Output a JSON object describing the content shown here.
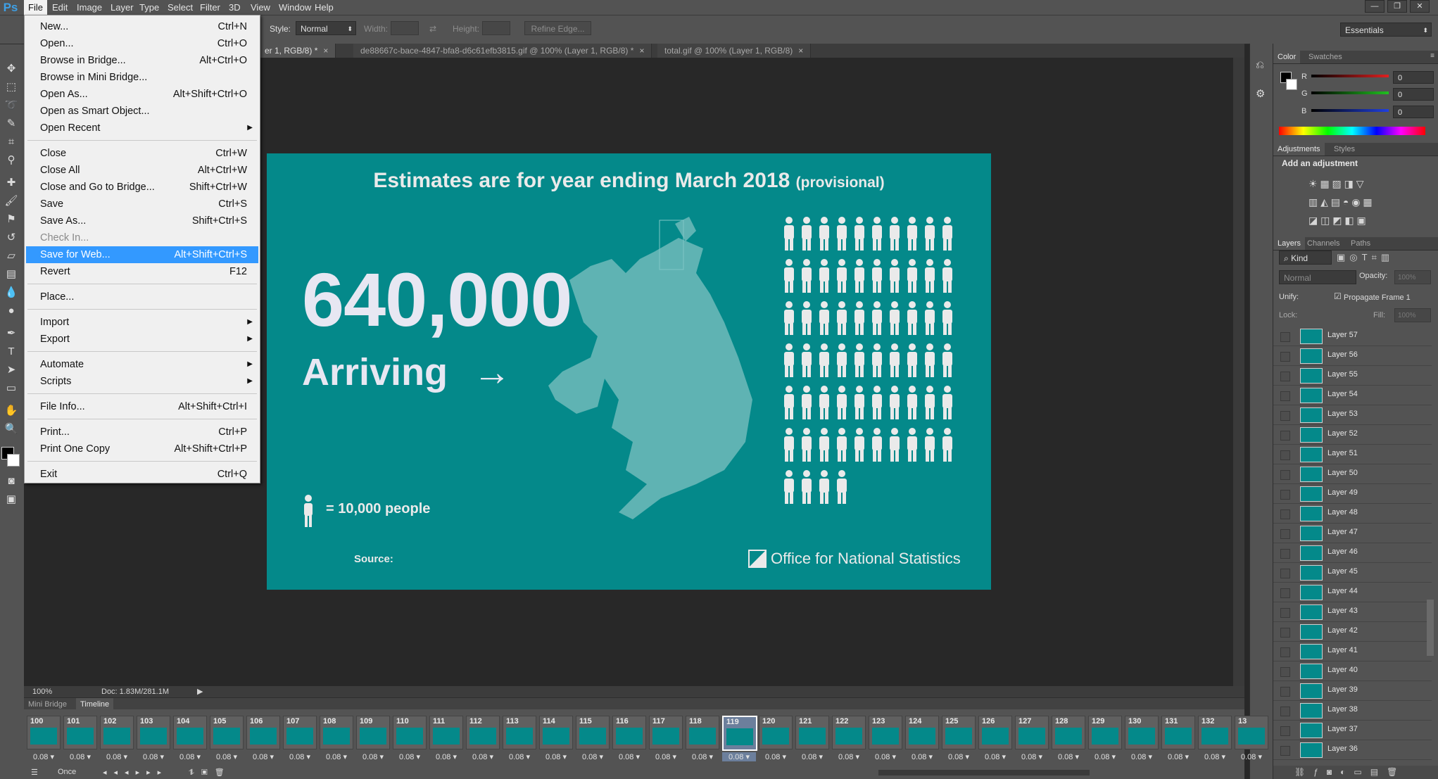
{
  "app": {
    "logo": "Ps"
  },
  "menubar": {
    "items": [
      "File",
      "Edit",
      "Image",
      "Layer",
      "Type",
      "Select",
      "Filter",
      "3D",
      "View",
      "Window",
      "Help"
    ],
    "active": "File",
    "workspace": "Essentials"
  },
  "options_bar": {
    "style_label": "Style:",
    "style_value": "Normal",
    "width_label": "Width:",
    "height_label": "Height:",
    "refine_edge": "Refine Edge..."
  },
  "doc_tabs": [
    {
      "label": "er 1, RGB/8) *"
    },
    {
      "label": "de88667c-bace-4847-bfa8-d6c61efb3815.gif @ 100% (Layer 1, RGB/8) *"
    },
    {
      "label": "total.gif @ 100% (Layer 1, RGB/8)"
    }
  ],
  "file_menu": {
    "groups": [
      [
        {
          "label": "New...",
          "shortcut": "Ctrl+N"
        },
        {
          "label": "Open...",
          "shortcut": "Ctrl+O"
        },
        {
          "label": "Browse in Bridge...",
          "shortcut": "Alt+Ctrl+O"
        },
        {
          "label": "Browse in Mini Bridge...",
          "shortcut": ""
        },
        {
          "label": "Open As...",
          "shortcut": "Alt+Shift+Ctrl+O"
        },
        {
          "label": "Open as Smart Object...",
          "shortcut": ""
        },
        {
          "label": "Open Recent",
          "shortcut": "",
          "submenu": true
        }
      ],
      [
        {
          "label": "Close",
          "shortcut": "Ctrl+W"
        },
        {
          "label": "Close All",
          "shortcut": "Alt+Ctrl+W"
        },
        {
          "label": "Close and Go to Bridge...",
          "shortcut": "Shift+Ctrl+W"
        },
        {
          "label": "Save",
          "shortcut": "Ctrl+S"
        },
        {
          "label": "Save As...",
          "shortcut": "Shift+Ctrl+S"
        },
        {
          "label": "Check In...",
          "shortcut": "",
          "disabled": true
        },
        {
          "label": "Save for Web...",
          "shortcut": "Alt+Shift+Ctrl+S",
          "highlighted": true
        },
        {
          "label": "Revert",
          "shortcut": "F12"
        }
      ],
      [
        {
          "label": "Place...",
          "shortcut": ""
        }
      ],
      [
        {
          "label": "Import",
          "shortcut": "",
          "submenu": true
        },
        {
          "label": "Export",
          "shortcut": "",
          "submenu": true
        }
      ],
      [
        {
          "label": "Automate",
          "shortcut": "",
          "submenu": true
        },
        {
          "label": "Scripts",
          "shortcut": "",
          "submenu": true
        }
      ],
      [
        {
          "label": "File Info...",
          "shortcut": "Alt+Shift+Ctrl+I"
        }
      ],
      [
        {
          "label": "Print...",
          "shortcut": "Ctrl+P"
        },
        {
          "label": "Print One Copy",
          "shortcut": "Alt+Shift+Ctrl+P"
        }
      ],
      [
        {
          "label": "Exit",
          "shortcut": "Ctrl+Q"
        }
      ]
    ]
  },
  "artwork": {
    "title_main": "Estimates are for year ending March 2018",
    "title_suffix": "(provisional)",
    "big_number": "640,000",
    "direction_label": "Arriving",
    "arrow": "→",
    "legend": "= 10,000 people",
    "source_label": "Source:",
    "org_name": "Office for National Statistics",
    "people_icon_count": 64,
    "colors": {
      "background": "#04898a",
      "text": "#e7e7f2",
      "map": "#5fb3b3"
    }
  },
  "color_panel": {
    "tabs": [
      "Color",
      "Swatches"
    ],
    "channels": [
      {
        "label": "R",
        "value": "0",
        "color": "#e02020"
      },
      {
        "label": "G",
        "value": "0",
        "color": "#20c020"
      },
      {
        "label": "B",
        "value": "0",
        "color": "#2040e0"
      }
    ]
  },
  "adjustments_panel": {
    "tabs": [
      "Adjustments",
      "Styles"
    ],
    "heading": "Add an adjustment"
  },
  "layers_panel": {
    "tabs": [
      "Layers",
      "Channels",
      "Paths"
    ],
    "filter": "Kind",
    "blend_mode": "Normal",
    "opacity_label": "Opacity:",
    "opacity_value": "100%",
    "unify_label": "Unify:",
    "propagate_label": "Propagate Frame 1",
    "lock_label": "Lock:",
    "fill_label": "Fill:",
    "fill_value": "100%",
    "layers": [
      "Layer 57",
      "Layer 56",
      "Layer 55",
      "Layer 54",
      "Layer 53",
      "Layer 52",
      "Layer 51",
      "Layer 50",
      "Layer 49",
      "Layer 48",
      "Layer 47",
      "Layer 46",
      "Layer 45",
      "Layer 44",
      "Layer 43",
      "Layer 42",
      "Layer 41",
      "Layer 40",
      "Layer 39",
      "Layer 38",
      "Layer 37",
      "Layer 36"
    ]
  },
  "status_bar": {
    "zoom": "100%",
    "doc_info": "Doc: 1.83M/281.1M"
  },
  "timeline": {
    "tabs": [
      "Mini Bridge",
      "Timeline"
    ],
    "active_tab": "Timeline",
    "frames": [
      "100",
      "101",
      "102",
      "103",
      "104",
      "105",
      "106",
      "107",
      "108",
      "109",
      "110",
      "111",
      "112",
      "113",
      "114",
      "115",
      "116",
      "117",
      "118",
      "119",
      "120",
      "121",
      "122",
      "123",
      "124",
      "125",
      "126",
      "127",
      "128",
      "129",
      "130",
      "131",
      "132",
      "13"
    ],
    "frame_delay": "0.08",
    "selected_frame": "119",
    "loop": "Once"
  }
}
